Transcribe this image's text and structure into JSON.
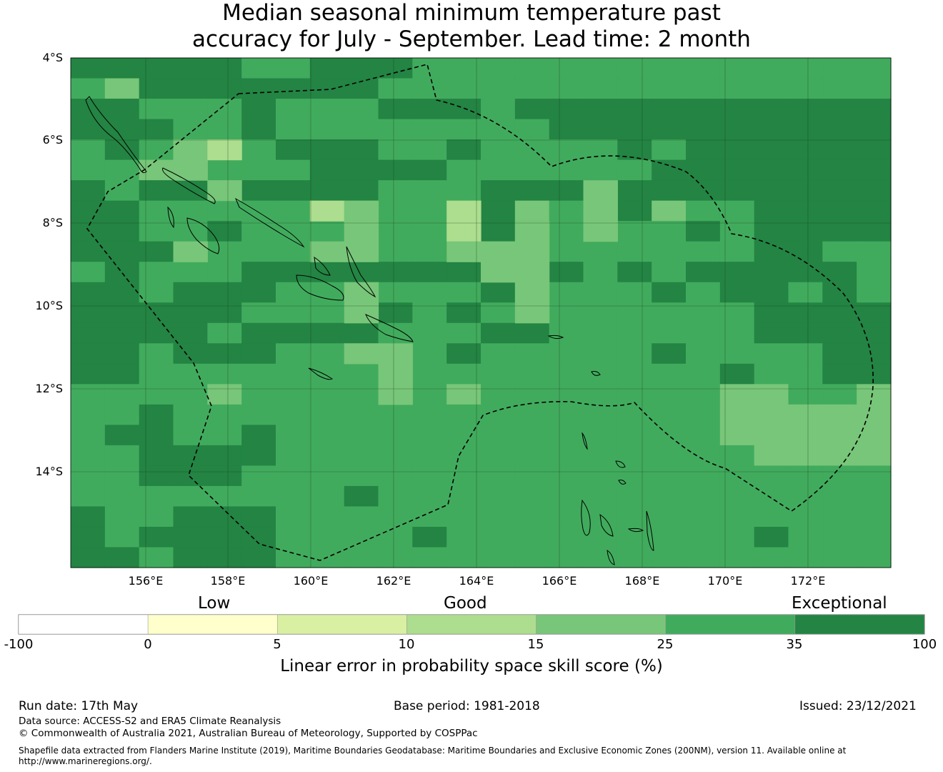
{
  "title_line1": "Median seasonal minimum temperature past",
  "title_line2": "accuracy for July - September. Lead time: 2 month",
  "lat_labels": [
    "4°S",
    "6°S",
    "8°S",
    "10°S",
    "12°S",
    "14°S"
  ],
  "lon_labels": [
    "156°E",
    "158°E",
    "160°E",
    "162°E",
    "164°E",
    "166°E",
    "168°E",
    "170°E",
    "172°E"
  ],
  "colorbar": {
    "category_labels": [
      "Low",
      "Good",
      "Exceptional"
    ],
    "tick_labels": [
      "-100",
      "0",
      "5",
      "10",
      "15",
      "25",
      "35",
      "100"
    ],
    "colors": [
      "#ffffff",
      "#ffffcc",
      "#d9f0a3",
      "#addd8e",
      "#78c679",
      "#41ab5d",
      "#238443"
    ],
    "title": "Linear error in probability space skill score (%)"
  },
  "footer": {
    "run_date": "Run date: 17th May",
    "base_period": "Base period: 1981-2018",
    "issued": "Issued: 23/12/2021",
    "data_source": "Data source: ACCESS-S2 and ERA5 Climate Reanalysis",
    "copyright": "© Commonwealth of Australia 2021, Australian Bureau of Meteorology, Supported by COSPPac",
    "shapefile_line1": "Shapefile data extracted from Flanders Marine Institute (2019), Maritime Boundaries Geodatabase: Maritime Boundaries and Exclusive Economic Zones (200NM), version 11. Available online at",
    "shapefile_line2": "http://www.marineregions.org/."
  },
  "map": {
    "colors": {
      "0": "#41ab5d",
      "1": "#238443",
      "2": "#78c679",
      "3": "#addd8e"
    },
    "grid": [
      "111110011100000000000000",
      "021111111000000000000000",
      "110001000111011111111111",
      "111001000000001111111111",
      "010000111001000010111111",
      "002200011110000001111111",
      "101101111000111111111111",
      "110000000000120012001111",
      "110010000000100000101111",
      "111000000001000000001100",
      "010001111111111010111110",
      "110111000000110001011010",
      "111110001101000000001111",
      "111101111000110000001111",
      "110111000001000001000011",
      "110000000000000000010011",
      "000020000002000000022002",
      "001000000000000000022222",
      "011001000000000000022222",
      "001111000000000000002222",
      "001110000000000000000000",
      "000000001000000000000000",
      "100111000000000000000000",
      "101111000010000000001000",
      "110111000000000000000000"
    ],
    "light_cells": [
      [
        4,
        3,
        2
      ],
      [
        5,
        3,
        2
      ],
      [
        4,
        4,
        3
      ],
      [
        6,
        4,
        2
      ],
      [
        7,
        7,
        3
      ],
      [
        7,
        8,
        2
      ],
      [
        8,
        8,
        2
      ],
      [
        9,
        7,
        2
      ],
      [
        9,
        8,
        2
      ],
      [
        9,
        3,
        2
      ],
      [
        11,
        8,
        2
      ],
      [
        12,
        8,
        2
      ],
      [
        14,
        8,
        2
      ],
      [
        14,
        9,
        2
      ],
      [
        15,
        9,
        2
      ],
      [
        16,
        9,
        2
      ],
      [
        7,
        11,
        3
      ],
      [
        8,
        11,
        3
      ],
      [
        9,
        11,
        2
      ],
      [
        9,
        12,
        2
      ],
      [
        10,
        12,
        2
      ],
      [
        11,
        13,
        2
      ],
      [
        12,
        13,
        2
      ],
      [
        6,
        15,
        2
      ],
      [
        7,
        15,
        2
      ],
      [
        8,
        15,
        2
      ],
      [
        8,
        13,
        2
      ],
      [
        9,
        13,
        2
      ],
      [
        10,
        13,
        2
      ]
    ]
  }
}
